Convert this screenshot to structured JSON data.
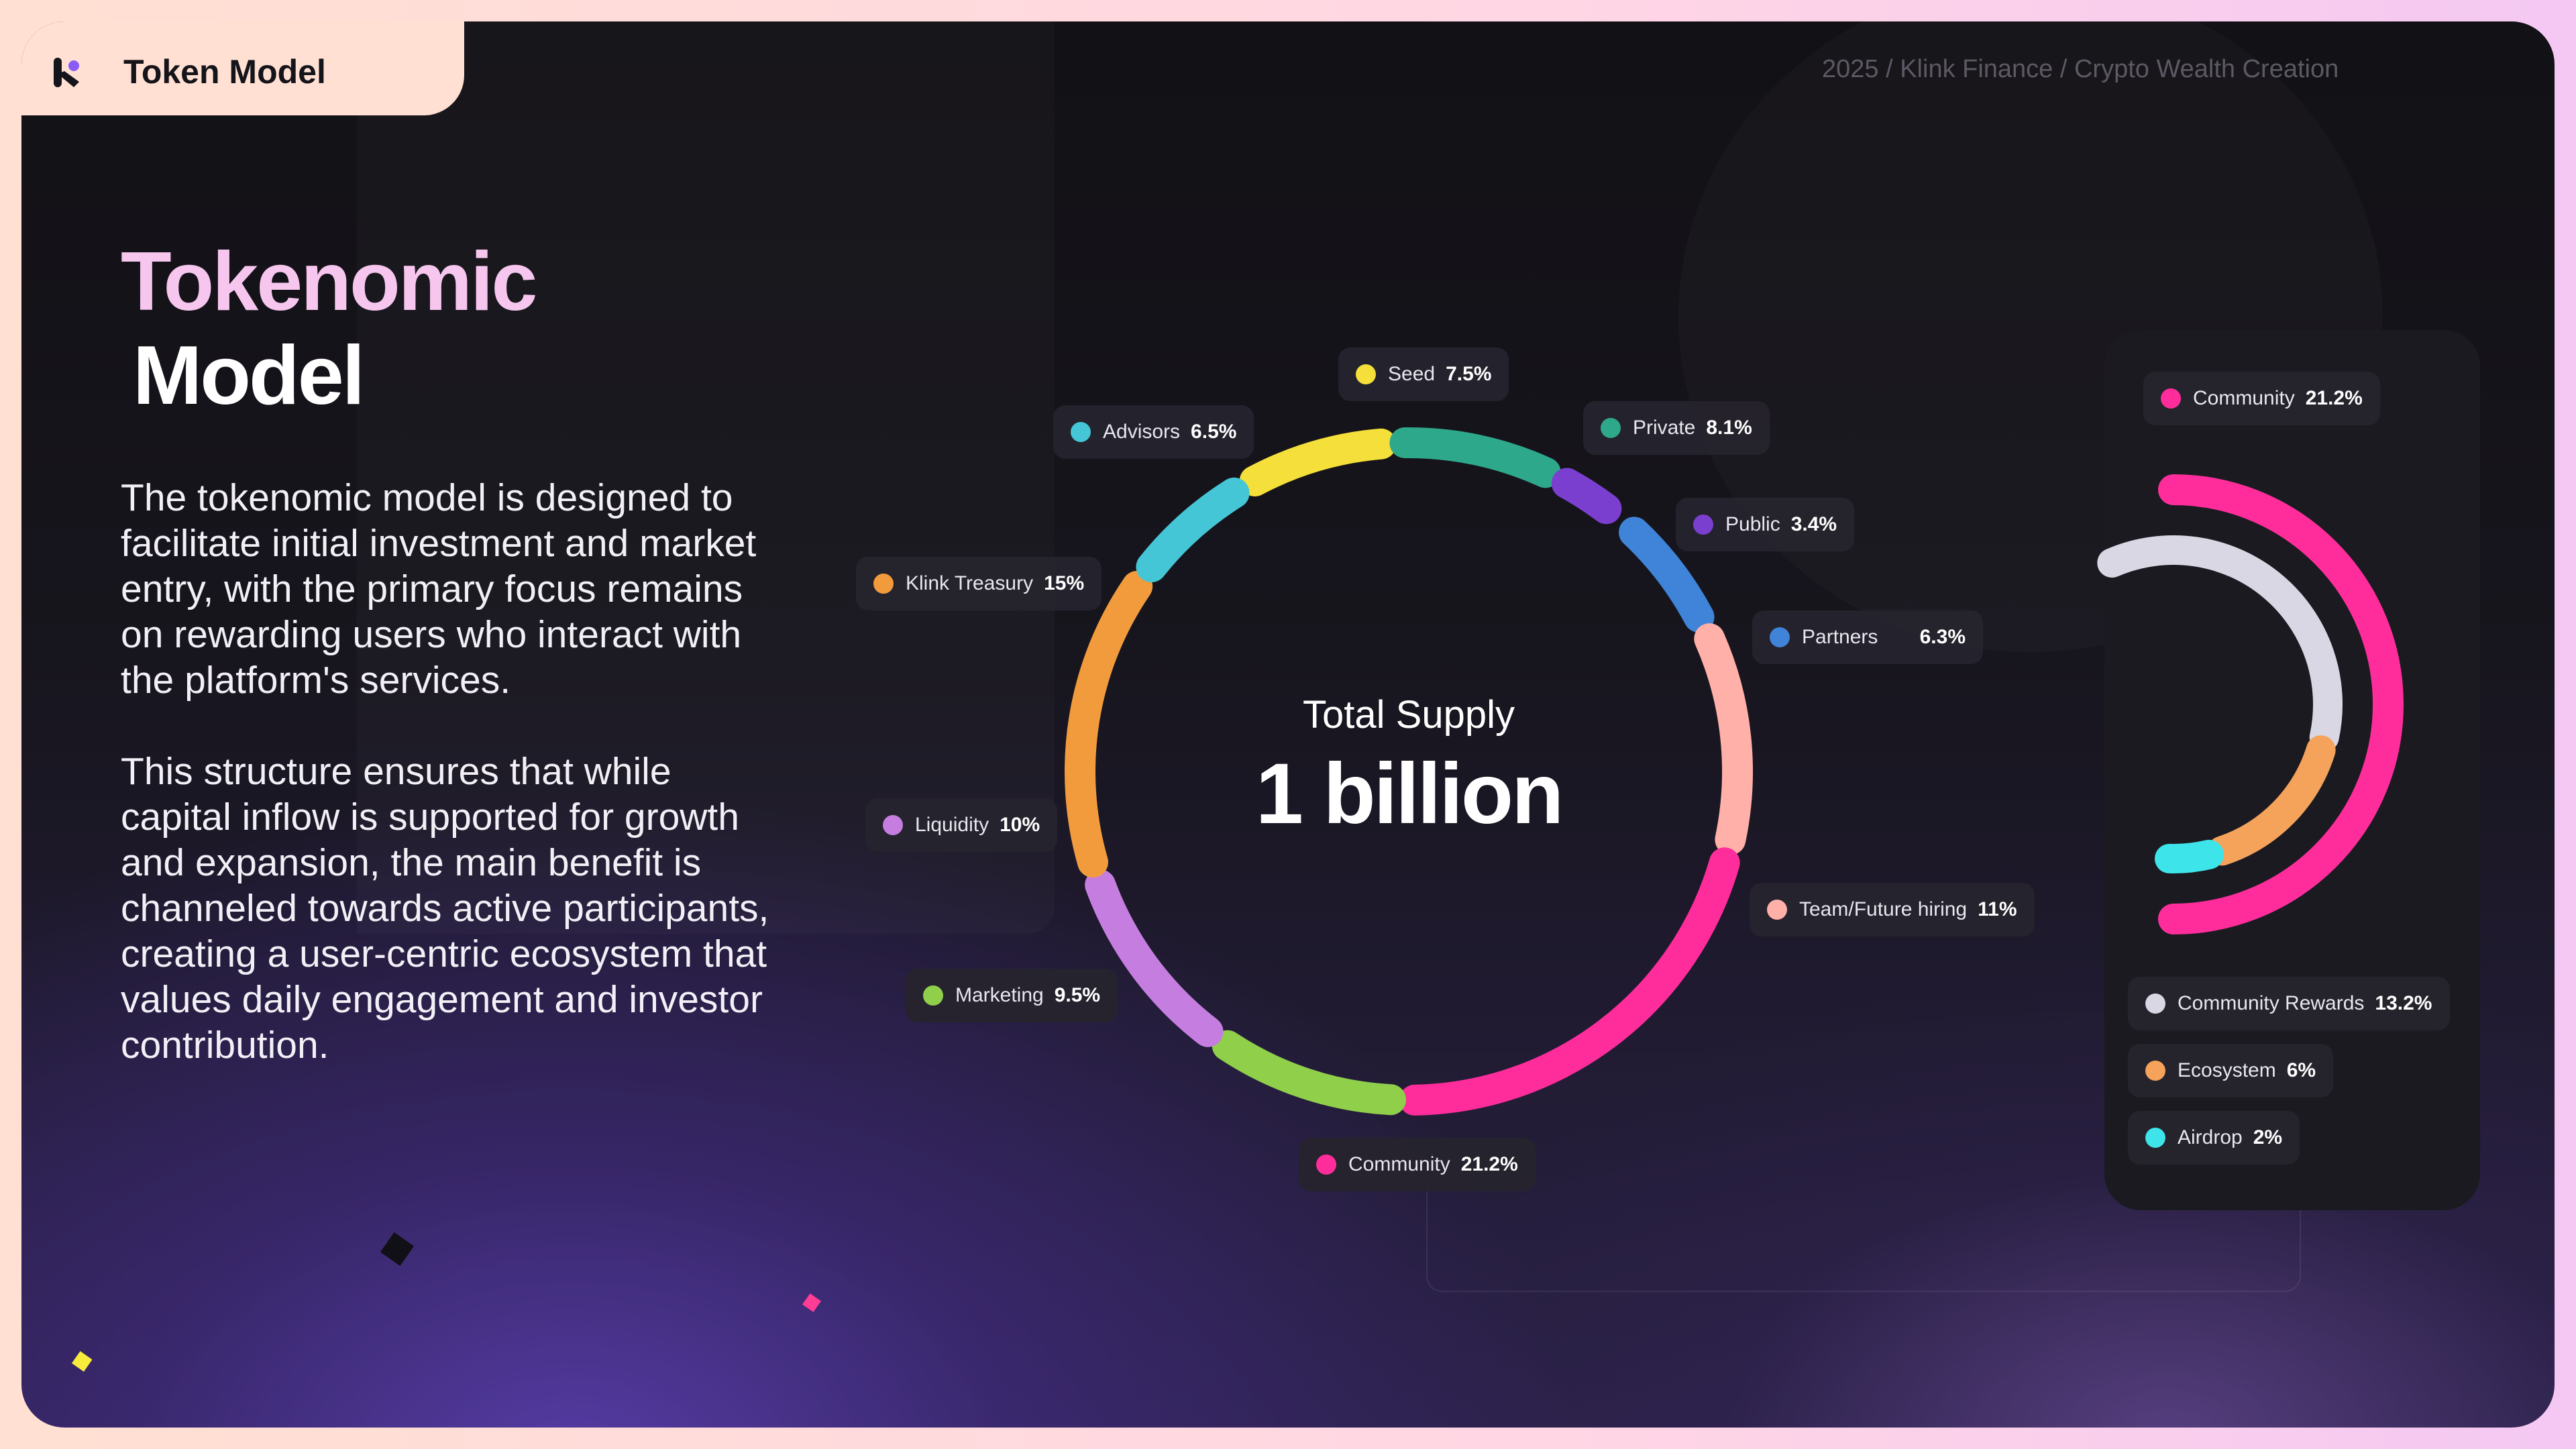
{
  "header": {
    "brand": "Token Model",
    "breadcrumb": "2025 / Klink Finance / Crypto Wealth Creation"
  },
  "heading": {
    "line1": "Tokenomic",
    "line2": "Model"
  },
  "description": {
    "p1": "The tokenomic model is designed to facilitate initial investment and market entry, with the primary focus remains on rewarding users who interact with the platform's services.",
    "p2": "This structure ensures that while capital inflow is supported for growth and expansion, the main benefit is channeled towards active participants, creating a user-centric ecosystem that values daily engagement and investor contribution."
  },
  "center": {
    "title": "Total Supply",
    "value": "1 billion"
  },
  "colors": {
    "card_bg": "#121115",
    "accent_pink": "#ff2d9b",
    "heading_pink": "#f7c6ee"
  },
  "chart_data": [
    {
      "type": "pie",
      "variant": "segmented-ring",
      "slices": [
        {
          "label": "Seed",
          "value_label": "7.5%",
          "value": 7.5,
          "color": "#f5df3a"
        },
        {
          "label": "Private",
          "value_label": "8.1%",
          "value": 8.1,
          "color": "#2ea88a"
        },
        {
          "label": "Public",
          "value_label": "3.4%",
          "value": 3.4,
          "color": "#7b3fd0"
        },
        {
          "label": "",
          "value_label": "",
          "value": 0.6,
          "color": "#f26a3a"
        },
        {
          "label": "Partners",
          "value_label": "6.3%",
          "value": 6.3,
          "color": "#3f84d8"
        },
        {
          "label": "Team/Future hiring",
          "value_label": "11%",
          "value": 11,
          "color": "#ffb0a8"
        },
        {
          "label": "Community",
          "value_label": "21.2%",
          "value": 21.2,
          "color": "#ff2d9b"
        },
        {
          "label": "Marketing",
          "value_label": "9.5%",
          "value": 9.5,
          "color": "#8fcf4a"
        },
        {
          "label": "Liquidity",
          "value_label": "10%",
          "value": 10,
          "color": "#c57ee0"
        },
        {
          "label": "Klink Treasury",
          "value_label": "15%",
          "value": 15,
          "color": "#f29b3c"
        },
        {
          "label": "Advisors",
          "value_label": "6.5%",
          "value": 6.5,
          "color": "#45c6d6"
        }
      ],
      "center_title": "Total Supply",
      "center_value": "1 billion"
    },
    {
      "type": "pie",
      "variant": "concentric-arcs",
      "title_label": "Community",
      "title_value": "21.2%",
      "slices": [
        {
          "label": "Community Rewards",
          "value_label": "13.2%",
          "value": 13.2,
          "color": "#d9d7e3"
        },
        {
          "label": "Ecosystem",
          "value_label": "6%",
          "value": 6,
          "color": "#f5a25b"
        },
        {
          "label": "Airdrop",
          "value_label": "2%",
          "value": 2,
          "color": "#3de4ea"
        }
      ]
    }
  ]
}
